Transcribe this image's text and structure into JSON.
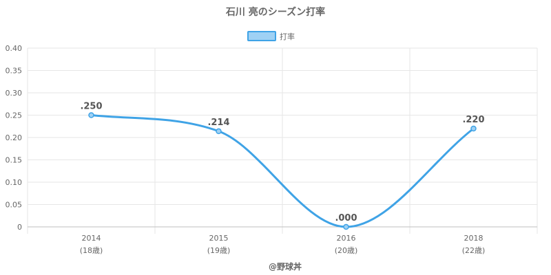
{
  "chart_data": {
    "type": "line",
    "title": "石川 亮のシーズン打率",
    "categories": [
      "2014",
      "2015",
      "2016",
      "2018"
    ],
    "category_sublabels": [
      "(18歳)",
      "(19歳)",
      "(20歳)",
      "(22歳)"
    ],
    "series": [
      {
        "name": "打率",
        "values": [
          0.25,
          0.214,
          0.0,
          0.22
        ],
        "data_labels": [
          ".250",
          ".214",
          ".000",
          ".220"
        ],
        "color": "#3fa3e6",
        "fill_color": "#9fd1f4"
      }
    ],
    "ylim": [
      0,
      0.4
    ],
    "yticks": [
      0,
      0.05,
      0.1,
      0.15,
      0.2,
      0.25,
      0.3,
      0.35,
      0.4
    ],
    "ytick_labels": [
      "0",
      "0.05",
      "0.10",
      "0.15",
      "0.20",
      "0.25",
      "0.30",
      "0.35",
      "0.40"
    ],
    "xlabel": "",
    "ylabel": "",
    "grid": true,
    "legend_position": "top-center"
  },
  "credit": "@野球丼",
  "colors": {
    "grid": "#e6e6e6",
    "axis": "#bdbdbd",
    "text": "#666666"
  }
}
